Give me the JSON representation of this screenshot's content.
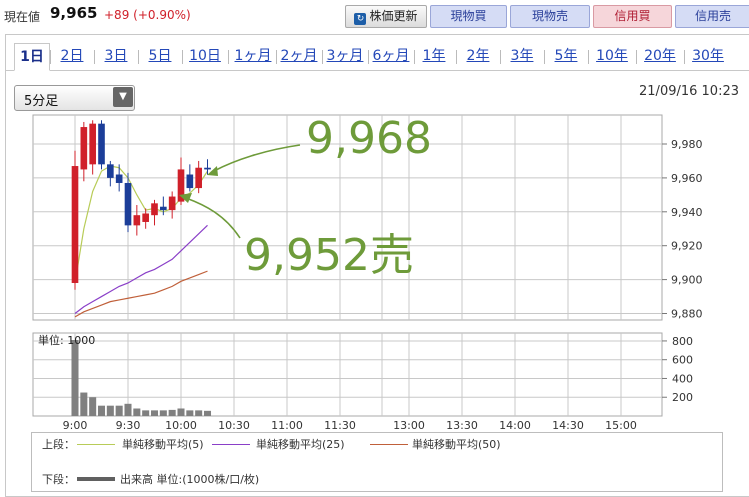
{
  "header": {
    "price_label": "現在値",
    "price_value": "9,965",
    "price_change": "+89 (+0.90%)",
    "refresh_label": "株価更新",
    "buttons": [
      "現物買",
      "現物売",
      "信用買",
      "信用売"
    ]
  },
  "tabs": [
    "1日",
    "2日",
    "3日",
    "5日",
    "10日",
    "1ヶ月",
    "2ヶ月",
    "3ヶ月",
    "6ヶ月",
    "1年",
    "2年",
    "3年",
    "5年",
    "10年",
    "20年",
    "30年"
  ],
  "interval": {
    "selected": "5分足"
  },
  "timestamp": "21/09/16 10:23",
  "colors": {
    "up": "#d0202a",
    "down": "#1c3e99",
    "ma5": "#b8cc58",
    "ma25": "#8a3fc8",
    "ma50": "#c0603a",
    "annotation": "#6e9b3a",
    "volume": "#808080"
  },
  "annotations": [
    {
      "text": "9,968"
    },
    {
      "text": "9,952売"
    }
  ],
  "legend": {
    "upper_label": "上段：",
    "lower_label": "下段：",
    "ma5": "単純移動平均(5)",
    "ma25": "単純移動平均(25)",
    "ma50": "単純移動平均(50)",
    "volume": "出来高 単位:(1000株/口/枚)"
  },
  "chart_data": {
    "type": "candlestick",
    "x_ticks": [
      "9:00",
      "9:30",
      "10:00",
      "10:30",
      "11:00",
      "11:30",
      "13:00",
      "13:30",
      "14:00",
      "14:30",
      "15:00"
    ],
    "price_ticks": [
      "9,980",
      "9,960",
      "9,940",
      "9,920",
      "9,900",
      "9,880"
    ],
    "price_range": [
      9875,
      9995
    ],
    "volume_ticks": [
      "800",
      "600",
      "400",
      "200"
    ],
    "volume_unit_label": "単位: 1000",
    "volume_range": [
      0,
      850
    ],
    "candles": [
      {
        "o": 9898,
        "h": 9976,
        "l": 9894,
        "c": 9967
      },
      {
        "o": 9965,
        "h": 9993,
        "l": 9958,
        "c": 9990
      },
      {
        "o": 9968,
        "h": 9994,
        "l": 9962,
        "c": 9992
      },
      {
        "o": 9992,
        "h": 9994,
        "l": 9965,
        "c": 9968
      },
      {
        "o": 9968,
        "h": 9970,
        "l": 9955,
        "c": 9960
      },
      {
        "o": 9962,
        "h": 9968,
        "l": 9952,
        "c": 9957
      },
      {
        "o": 9957,
        "h": 9963,
        "l": 9928,
        "c": 9932
      },
      {
        "o": 9932,
        "h": 9944,
        "l": 9926,
        "c": 9938
      },
      {
        "o": 9934,
        "h": 9942,
        "l": 9930,
        "c": 9939
      },
      {
        "o": 9938,
        "h": 9947,
        "l": 9932,
        "c": 9945
      },
      {
        "o": 9943,
        "h": 9949,
        "l": 9938,
        "c": 9941
      },
      {
        "o": 9941,
        "h": 9952,
        "l": 9936,
        "c": 9949
      },
      {
        "o": 9946,
        "h": 9972,
        "l": 9944,
        "c": 9965
      },
      {
        "o": 9962,
        "h": 9968,
        "l": 9952,
        "c": 9954
      },
      {
        "o": 9954,
        "h": 9970,
        "l": 9951,
        "c": 9966
      },
      {
        "o": 9966,
        "h": 9971,
        "l": 9962,
        "c": 9965
      }
    ],
    "ma5": [
      9898,
      9930,
      9952,
      9964,
      9967,
      9966,
      9960,
      9950,
      9941,
      9942,
      9940,
      9942,
      9948,
      9951,
      9956,
      9964
    ],
    "ma25": [
      9880,
      9884,
      9887,
      9890,
      9893,
      9896,
      9898,
      9901,
      9904,
      9906,
      9909,
      9912,
      9917,
      9922,
      9927,
      9932
    ],
    "ma50": [
      9878,
      9881,
      9883,
      9885,
      9887,
      9888,
      9889,
      9890,
      9891,
      9892,
      9894,
      9896,
      9899,
      9901,
      9903,
      9905
    ],
    "volume": [
      810,
      250,
      200,
      110,
      110,
      110,
      130,
      80,
      60,
      60,
      60,
      65,
      80,
      60,
      60,
      55
    ]
  }
}
